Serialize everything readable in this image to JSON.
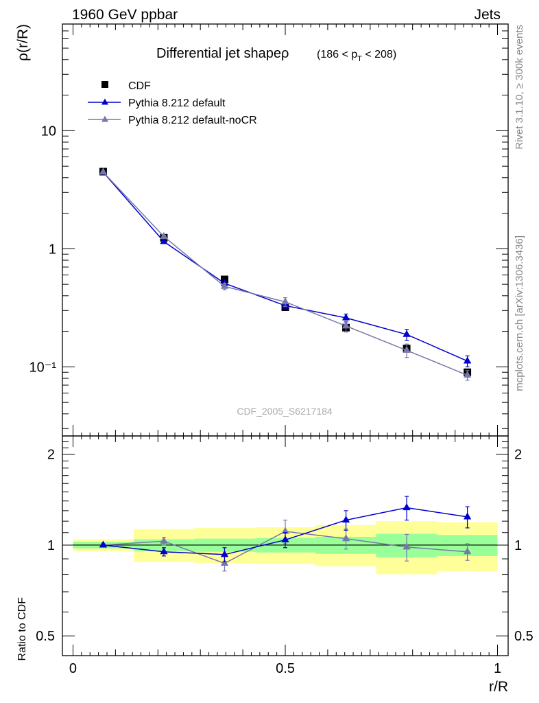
{
  "header": {
    "left": "1960 GeV ppbar",
    "right": "Jets"
  },
  "side_labels": {
    "rivet": "Rivet 3.1.10, ≥ 300k events",
    "mcplots": "mcplots.cern.ch [arXiv:1306.3436]"
  },
  "colors": {
    "cdf": "#000000",
    "default": "#0000cc",
    "nocr": "#7777aa",
    "band_inner": "#99ff99",
    "band_outer": "#ffff99"
  },
  "chart_data": [
    {
      "type": "line",
      "panel": "main",
      "title": "Differential jet shapeρ",
      "title_range": {
        "pre": "(186 < p",
        "sub": "T",
        "post": " < 208)"
      },
      "xlabel": "r/R",
      "ylabel": "ρ(r/R)",
      "yscale": "log",
      "xlim": [
        -0.025,
        1.025
      ],
      "ylim": [
        0.026,
        80
      ],
      "ytick_labels": [
        "10",
        "1",
        "10⁻¹"
      ],
      "yticks": [
        10,
        1,
        0.1
      ],
      "watermark": "CDF_2005_S6217184",
      "legend": [
        "CDF",
        "Pythia 8.212 default",
        "Pythia 8.212 default-noCR"
      ],
      "series": [
        {
          "name": "CDF",
          "marker": "square",
          "x": [
            0.071,
            0.214,
            0.357,
            0.5,
            0.643,
            0.786,
            0.929
          ],
          "y": [
            4.5,
            1.24,
            0.55,
            0.32,
            0.215,
            0.143,
            0.09
          ],
          "err": [
            0,
            0,
            0,
            0,
            0,
            0,
            0
          ]
        },
        {
          "name": "Pythia 8.212 default",
          "marker": "triangle",
          "x": [
            0.071,
            0.214,
            0.357,
            0.5,
            0.643,
            0.786,
            0.929
          ],
          "y": [
            4.45,
            1.15,
            0.51,
            0.33,
            0.26,
            0.188,
            0.112
          ],
          "err": [
            0.05,
            0.03,
            0.02,
            0.02,
            0.02,
            0.02,
            0.012
          ]
        },
        {
          "name": "Pythia 8.212 default-noCR",
          "marker": "triangle",
          "x": [
            0.071,
            0.214,
            0.357,
            0.5,
            0.643,
            0.786,
            0.929
          ],
          "y": [
            4.46,
            1.27,
            0.48,
            0.355,
            0.222,
            0.138,
            0.085
          ],
          "err": [
            0.05,
            0.03,
            0.03,
            0.03,
            0.025,
            0.018,
            0.008
          ]
        }
      ]
    },
    {
      "type": "line",
      "panel": "ratio",
      "ylabel": "Ratio to CDF",
      "xlabel": "r/R",
      "yscale": "log",
      "xlim": [
        -0.025,
        1.025
      ],
      "ylim": [
        0.43,
        2.3
      ],
      "yticks": [
        2,
        1,
        0.5
      ],
      "ytick_labels": [
        "2",
        "1",
        "0.5"
      ],
      "xticks": [
        0,
        0.5,
        1
      ],
      "xtick_labels": [
        "0",
        "0.5",
        "1"
      ],
      "bands": [
        {
          "x0": 0.0,
          "x1": 0.143,
          "inner": [
            0.975,
            1.025
          ],
          "outer": [
            0.955,
            1.045
          ]
        },
        {
          "x0": 0.143,
          "x1": 0.286,
          "inner": [
            0.955,
            1.045
          ],
          "outer": [
            0.88,
            1.13
          ]
        },
        {
          "x0": 0.286,
          "x1": 0.429,
          "inner": [
            0.95,
            1.05
          ],
          "outer": [
            0.87,
            1.14
          ]
        },
        {
          "x0": 0.429,
          "x1": 0.571,
          "inner": [
            0.945,
            1.055
          ],
          "outer": [
            0.865,
            1.145
          ]
        },
        {
          "x0": 0.571,
          "x1": 0.714,
          "inner": [
            0.935,
            1.065
          ],
          "outer": [
            0.85,
            1.165
          ]
        },
        {
          "x0": 0.714,
          "x1": 0.857,
          "inner": [
            0.91,
            1.09
          ],
          "outer": [
            0.8,
            1.2
          ]
        },
        {
          "x0": 0.857,
          "x1": 1.0,
          "inner": [
            0.92,
            1.08
          ],
          "outer": [
            0.82,
            1.19
          ]
        }
      ],
      "series": [
        {
          "name": "Pythia 8.212 default",
          "x": [
            0.071,
            0.214,
            0.357,
            0.5,
            0.643,
            0.786,
            0.929
          ],
          "y": [
            1.0,
            0.95,
            0.93,
            1.04,
            1.21,
            1.33,
            1.24
          ],
          "err": [
            0.01,
            0.03,
            0.05,
            0.06,
            0.09,
            0.12,
            0.1
          ]
        },
        {
          "name": "Pythia 8.212 default-noCR",
          "x": [
            0.071,
            0.214,
            0.357,
            0.5,
            0.643,
            0.786,
            0.929
          ],
          "y": [
            1.0,
            1.03,
            0.87,
            1.11,
            1.05,
            0.985,
            0.95
          ],
          "err": [
            0.01,
            0.03,
            0.05,
            0.1,
            0.08,
            0.1,
            0.06
          ]
        }
      ]
    }
  ]
}
